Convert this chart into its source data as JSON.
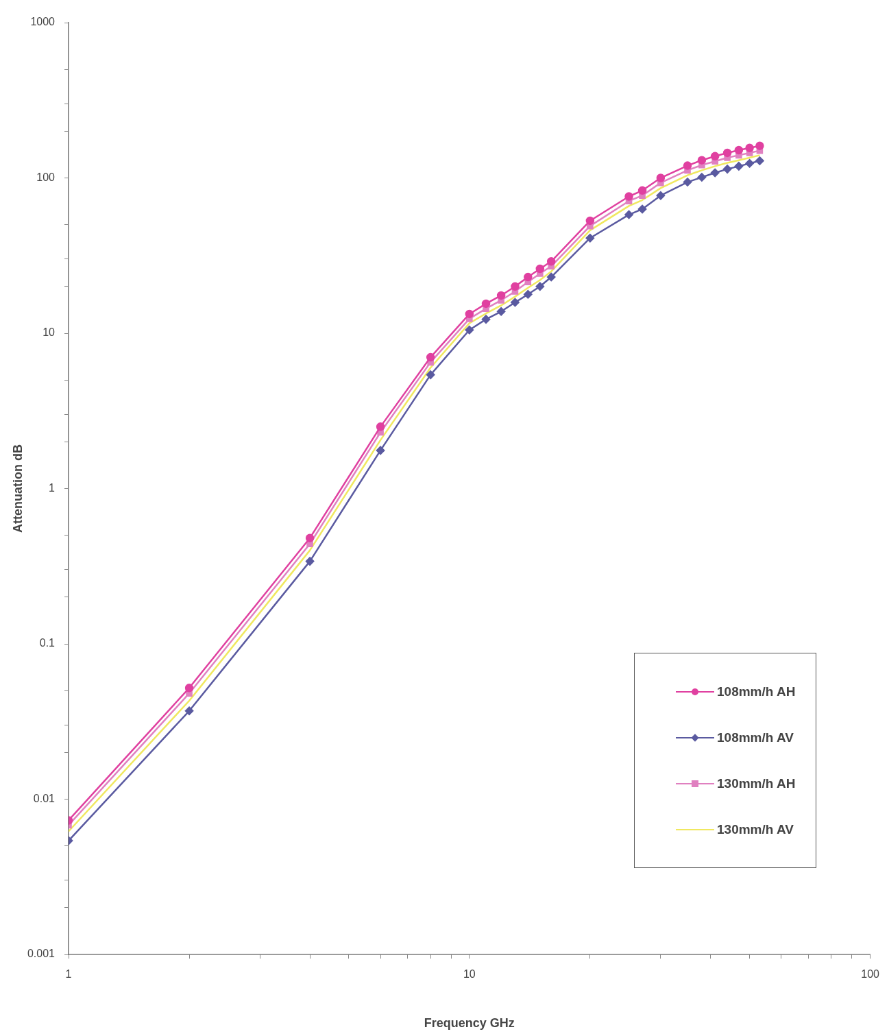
{
  "chart_data": {
    "type": "line",
    "xlabel": "Frequency GHz",
    "ylabel": "Attenuation dB",
    "x": [
      1,
      2,
      4,
      6,
      8,
      10,
      11,
      12,
      13,
      14,
      15,
      16,
      20,
      25,
      27,
      30,
      35,
      38,
      41,
      44,
      47,
      50,
      53
    ],
    "series": [
      {
        "name": "108mm/h AH",
        "color": "#e040a0",
        "marker": "circle",
        "values": [
          0.0073,
          0.052,
          0.48,
          2.5,
          7.0,
          13.3,
          15.5,
          17.5,
          20,
          23,
          26,
          29,
          53,
          76,
          83,
          100,
          120,
          130,
          138,
          145,
          151,
          156,
          161
        ]
      },
      {
        "name": "108mm/h AV",
        "color": "#5a5aa0",
        "marker": "diamond",
        "values": [
          0.0054,
          0.037,
          0.34,
          1.76,
          5.4,
          10.5,
          12.3,
          13.8,
          15.8,
          17.8,
          20,
          23,
          41,
          58,
          63,
          77,
          94,
          101,
          108,
          114,
          119,
          124,
          129
        ]
      },
      {
        "name": "130mm/h AH",
        "color": "#e080c0",
        "marker": "square",
        "values": [
          0.0068,
          0.048,
          0.44,
          2.3,
          6.5,
          12.4,
          14.4,
          16.3,
          18.6,
          21.4,
          24.2,
          27,
          49,
          71,
          77,
          93,
          112,
          121,
          128,
          135,
          140,
          145,
          150
        ]
      },
      {
        "name": "130mm/h AV",
        "color": "#f0e860",
        "marker": "none",
        "values": [
          0.0062,
          0.043,
          0.4,
          2.05,
          6.0,
          11.6,
          13.4,
          15.1,
          17.2,
          19.6,
          22,
          25,
          46,
          66,
          72,
          86,
          104,
          112,
          119,
          125,
          130,
          135,
          140
        ]
      }
    ],
    "log": "xy",
    "grid": false,
    "legend": "bottom right",
    "xlim": [
      1,
      100
    ],
    "xticks": [
      1,
      {
        "value": 2,
        "label": null
      },
      {
        "value": 3,
        "label": null
      },
      {
        "value": 4,
        "label": null
      },
      {
        "value": 5,
        "label": null
      },
      {
        "value": 6,
        "label": null
      },
      {
        "value": 7,
        "label": null
      },
      {
        "value": 8,
        "label": null
      },
      {
        "value": 9,
        "label": null
      },
      10,
      {
        "value": 20,
        "label": null
      },
      {
        "value": 30,
        "label": null
      },
      {
        "value": 40,
        "label": null
      },
      {
        "value": 50,
        "label": null
      },
      {
        "value": 60,
        "label": null
      },
      {
        "value": 70,
        "label": null
      },
      {
        "value": 80,
        "label": null
      },
      {
        "value": 90,
        "label": null
      },
      100
    ],
    "ylim": [
      0.001,
      1000
    ],
    "yticks": [
      0.001,
      {
        "value": 0.002,
        "label": null
      },
      {
        "value": 0.003,
        "label": null
      },
      {
        "value": 0.005,
        "label": null
      },
      0.01,
      {
        "value": 0.02,
        "label": null
      },
      {
        "value": 0.03,
        "label": null
      },
      {
        "value": 0.05,
        "label": null
      },
      0.1,
      {
        "value": 0.2,
        "label": null
      },
      {
        "value": 0.3,
        "label": null
      },
      {
        "value": 0.5,
        "label": null
      },
      1,
      {
        "value": 2,
        "label": null
      },
      {
        "value": 3,
        "label": null
      },
      {
        "value": 5,
        "label": null
      },
      10,
      {
        "value": 20,
        "label": null
      },
      {
        "value": 30,
        "label": null
      },
      {
        "value": 50,
        "label": null
      },
      100,
      {
        "value": 200,
        "label": null
      },
      {
        "value": 300,
        "label": null
      },
      {
        "value": 500,
        "label": null
      },
      1000
    ]
  }
}
